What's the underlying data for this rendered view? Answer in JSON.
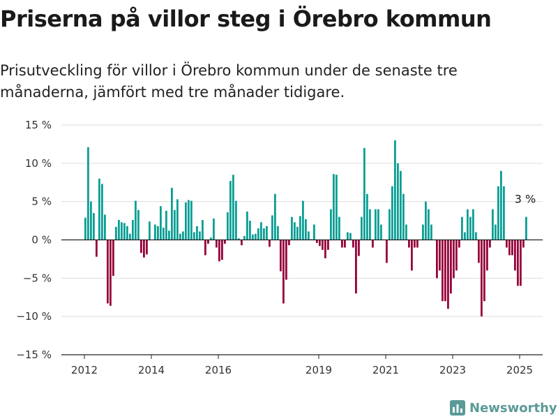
{
  "title": "Priserna på villor steg i Örebro kommun",
  "subtitle": "Prisutveckling för villor i Örebro kommun under de senaste tre månaderna, jämfört med tre månader tidigare.",
  "brand": {
    "name": "Newsworthy",
    "icon": "bar-chart-logo-icon",
    "color": "#5a9a98"
  },
  "colors": {
    "positive": "#0a9e94",
    "negative": "#96003a",
    "grid": "#dddddd",
    "zero_line": "#222222"
  },
  "chart_data": {
    "type": "bar",
    "title": "Priserna på villor steg i Örebro kommun",
    "subtitle": "Prisutveckling för villor i Örebro kommun under de senaste tre månaderna, jämfört med tre månader tidigare.",
    "xlabel": "",
    "ylabel": "",
    "ylim": [
      -15,
      15
    ],
    "yticks": [
      15,
      10,
      5,
      0,
      -5,
      -10,
      -15
    ],
    "ytick_labels": [
      "15 %",
      "10 %",
      "5 %",
      "0 %",
      "−5 %",
      "−10 %",
      "−15 %"
    ],
    "x_start": "2012-01",
    "x_end": "2025-03",
    "frequency": "monthly",
    "xticks": [
      "2012",
      "2014",
      "2016",
      "2019",
      "2021",
      "2023",
      "2025"
    ],
    "grid": true,
    "legend": "none",
    "end_label": "3 %",
    "values": [
      2.9,
      12.1,
      5.0,
      3.5,
      -2.2,
      8.0,
      7.3,
      3.3,
      -8.3,
      -8.6,
      -4.7,
      1.7,
      2.6,
      2.3,
      2.2,
      1.8,
      0.8,
      2.6,
      5.1,
      3.9,
      -1.7,
      -2.3,
      -1.9,
      2.4,
      0.0,
      2.0,
      1.8,
      4.4,
      1.6,
      3.8,
      1.2,
      6.8,
      3.9,
      5.3,
      0.8,
      1.1,
      4.9,
      5.2,
      5.1,
      1.0,
      1.8,
      1.1,
      2.6,
      -2.0,
      -0.5,
      0.3,
      2.8,
      -1.0,
      -2.8,
      -2.6,
      -0.5,
      3.6,
      7.7,
      8.5,
      5.1,
      0.2,
      -0.7,
      0.5,
      3.7,
      2.5,
      0.7,
      0.8,
      1.5,
      2.3,
      1.5,
      1.8,
      -0.9,
      3.2,
      6.0,
      1.8,
      -4.1,
      -8.3,
      -5.2,
      -0.7,
      3.0,
      2.3,
      1.7,
      3.1,
      5.1,
      2.7,
      1.1,
      0.1,
      2.0,
      -0.4,
      -0.8,
      -1.3,
      -2.4,
      -1.3,
      4.0,
      8.6,
      8.5,
      3.0,
      -1.0,
      -1.0,
      1.0,
      0.9,
      -1.0,
      -7.0,
      -2.1,
      3.0,
      12.0,
      6.0,
      4.0,
      -1.0,
      4.0,
      4.0,
      2.0,
      0.0,
      -3.0,
      4.0,
      7.0,
      13.0,
      10.0,
      9.0,
      6.0,
      2.0,
      -1.0,
      -4.0,
      -1.0,
      -1.0,
      0.0,
      2.0,
      5.0,
      4.0,
      2.0,
      0.0,
      -5.0,
      -4.0,
      -8.0,
      -8.0,
      -9.0,
      -7.0,
      -5.0,
      -4.0,
      -1.0,
      3.0,
      1.0,
      4.0,
      3.0,
      4.0,
      1.0,
      -3.0,
      -10.0,
      -8.0,
      -4.0,
      -1.0,
      4.0,
      2.0,
      7.0,
      9.0,
      7.0,
      -1.0,
      -2.0,
      -2.0,
      -4.0,
      -6.0,
      -6.0,
      -1.0,
      3.0
    ]
  }
}
